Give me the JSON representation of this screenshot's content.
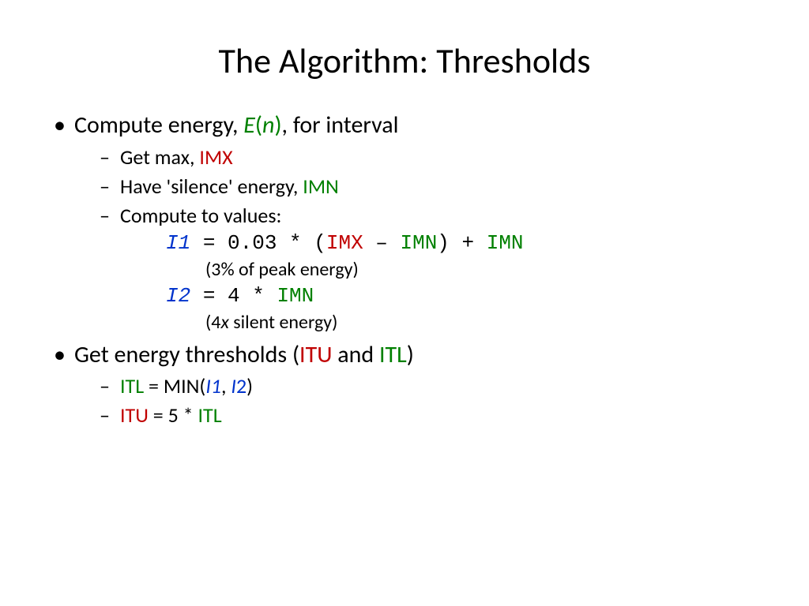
{
  "colors": {
    "green": "#008000",
    "red": "#c00000",
    "blue": "#0033cc",
    "text": "#000000",
    "background": "#ffffff"
  },
  "fonts": {
    "body": "Calibri",
    "mono": "Courier New",
    "title_size": 44,
    "level1_size": 30,
    "level2_size": 26,
    "note_size": 24
  },
  "title": "The Algorithm: Thresholds",
  "b1": {
    "t1": "Compute energy, ",
    "E": "E",
    "lp": "(",
    "n": "n",
    "rp": ")",
    "t2": ", for interval"
  },
  "b1s1": {
    "t1": "Get max, ",
    "imx": "IMX"
  },
  "b1s2": {
    "t1": "Have 'silence' energy, ",
    "imn": "IMN"
  },
  "b1s3": {
    "t1": "Compute to values:"
  },
  "f1": {
    "i1": "I1",
    "eq": " = 0.03 * (",
    "imx": "IMX",
    "minus": " – ",
    "imn1": "IMN",
    "rp": ") + ",
    "imn2": "IMN"
  },
  "n1": {
    "t": "(3% of peak energy)"
  },
  "f2": {
    "i2": "I2",
    "eq": " = 4 * ",
    "imn": "IMN"
  },
  "n2": {
    "lp": "(4",
    "x": "x",
    "t": " silent energy)"
  },
  "b2": {
    "t1": "Get energy thresholds (",
    "itu": "ITU",
    "and": " and ",
    "itl": "ITL",
    "rp": ")"
  },
  "b2s1": {
    "itl": "ITL",
    "eq": " = MIN(",
    "i1": "I1",
    "c": ", ",
    "i2a": "I",
    "i2b": "2",
    "rp": ")"
  },
  "b2s2": {
    "itu": "ITU",
    "eq": " = 5 * ",
    "itl": "ITL"
  }
}
